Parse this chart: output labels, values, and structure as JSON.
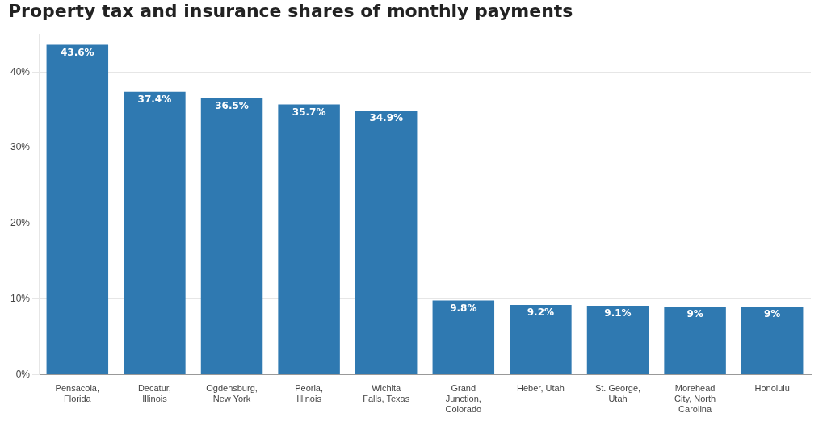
{
  "chart_data": {
    "type": "bar",
    "title": "Property tax and insurance shares of monthly payments",
    "categories": [
      "Pensacola, Florida",
      "Decatur, Illinois",
      "Ogdensburg, New York",
      "Peoria, Illinois",
      "Wichita Falls, Texas",
      "Grand Junction, Colorado",
      "Heber, Utah",
      "St. George, Utah",
      "Morehead City, North Carolina",
      "Honolulu"
    ],
    "values": [
      43.6,
      37.4,
      36.5,
      35.7,
      34.9,
      9.8,
      9.2,
      9.1,
      9,
      9
    ],
    "value_labels": [
      "43.6%",
      "37.4%",
      "36.5%",
      "35.7%",
      "34.9%",
      "9.8%",
      "9.2%",
      "9.1%",
      "9%",
      "9%"
    ],
    "color": "#2f79b1",
    "ylim": [
      0,
      45
    ],
    "yticks": [
      {
        "value": 0,
        "label": "0%"
      },
      {
        "value": 10,
        "label": "10%"
      },
      {
        "value": 20,
        "label": "20%"
      },
      {
        "value": 30,
        "label": "30%"
      },
      {
        "value": 40,
        "label": "40%"
      }
    ],
    "grid": "y"
  }
}
